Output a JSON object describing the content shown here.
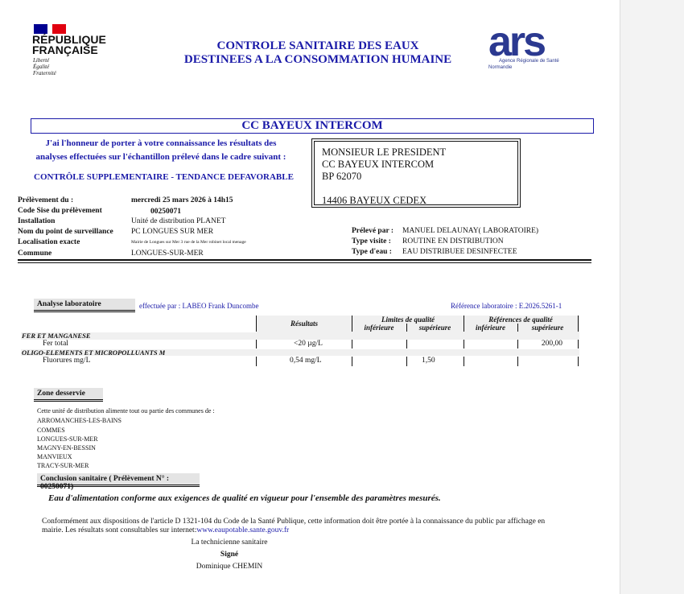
{
  "header": {
    "republique": "RÉPUBLIQUE",
    "francaise": "FRANÇAISE",
    "devise": [
      "Liberté",
      "Égalité",
      "Fraternité"
    ],
    "title_line1": "CONTROLE SANITAIRE DES EAUX",
    "title_line2": "DESTINEES A LA CONSOMMATION HUMAINE",
    "ars_logo": "ars",
    "ars_sub": "Agence Régionale de Santé",
    "ars_region": "Normandie"
  },
  "colors": {
    "title_blue": "#1a1aa8",
    "ars_blue": "#2b3990",
    "ars_green": "#8cc63f"
  },
  "recipient_title": "CC BAYEUX INTERCOM",
  "intro": [
    "J'ai l'honneur de porter à votre connaissance les résultats des",
    "analyses effectuées sur l'échantillon  prélevé dans le cadre suivant :"
  ],
  "context": "CONTRÔLE SUPPLEMENTAIRE - TENDANCE DEFAVORABLE",
  "address": [
    "MONSIEUR LE PRESIDENT",
    "CC BAYEUX INTERCOM",
    "BP 62070",
    "",
    "14406 BAYEUX CEDEX"
  ],
  "info": [
    {
      "label": "Prélèvement du :",
      "value": "mercredi 25 mars 2026 à 14h15"
    },
    {
      "label": "Code Sise du prélèvement",
      "value": "00250071"
    },
    {
      "label": "Installation",
      "value": "Unité de distribution PLANET"
    },
    {
      "label": "Nom du point de surveillance",
      "value": "PC LONGUES SUR MER"
    },
    {
      "label": "Localisation exacte",
      "value": "Mairie de Longues sur Mer 3 rue de la Mer robinet local menage"
    },
    {
      "label": "Commune",
      "value": "LONGUES-SUR-MER"
    }
  ],
  "info_right": [
    {
      "label": "Prélevé par :",
      "value": "MANUEL DELAUNAY( LABORATOIRE)"
    },
    {
      "label": "Type visite :",
      "value": "ROUTINE EN DISTRIBUTION"
    },
    {
      "label": "Type d'eau :",
      "value": "EAU DISTRIBUEE DESINFECTEE"
    }
  ],
  "analyse": {
    "title": "Analyse laboratoire",
    "by": "effectuée par : LABEO Frank Duncombe",
    "ref": "Référence laboratoire : E.2026.5261-1",
    "headers": {
      "results": "Résultats",
      "limits": "Limites de qualité",
      "refs": "Références de qualité",
      "inf": "inférieure",
      "sup": "supérieure"
    },
    "groups": [
      {
        "name": "FER ET MANGANESE",
        "rows": [
          {
            "param": "Fer total",
            "result": "<20  µg/L",
            "lim_inf": "",
            "lim_sup": "",
            "ref_inf": "",
            "ref_sup": "200,00"
          }
        ]
      },
      {
        "name": "OLIGO-ELEMENTS ET MICROPOLLUANTS M",
        "rows": [
          {
            "param": "Fluorures mg/L",
            "result": "0,54  mg/L",
            "lim_inf": "",
            "lim_sup": "1,50",
            "ref_inf": "",
            "ref_sup": ""
          }
        ]
      }
    ]
  },
  "zone": {
    "title": "Zone desservie",
    "intro": "Cette unité de distribution alimente tout ou partie des communes de :",
    "communes": [
      "ARROMANCHES-LES-BAINS",
      "COMMES",
      "LONGUES-SUR-MER",
      "MAGNY-EN-BESSIN",
      "MANVIEUX",
      "TRACY-SUR-MER"
    ]
  },
  "conclusion": {
    "title": "Conclusion sanitaire ( Prélèvement N° : 00250071)",
    "text": "Eau d'alimentation conforme aux exigences de qualité en vigueur pour   l'ensemble des paramètres mesurés."
  },
  "footer": {
    "para1": "Conformément aux dispositions de l'article D 1321-104 du Code de la Santé Publique, cette information doit être portée à la connaissance du public par affichage en",
    "para2": "mairie. Les résultats sont consultables sur internet:",
    "link": "www.eaupotable.sante.gouv.fr",
    "role": "La technicienne sanitaire",
    "signed": "Signé",
    "name": "Dominique CHEMIN"
  }
}
